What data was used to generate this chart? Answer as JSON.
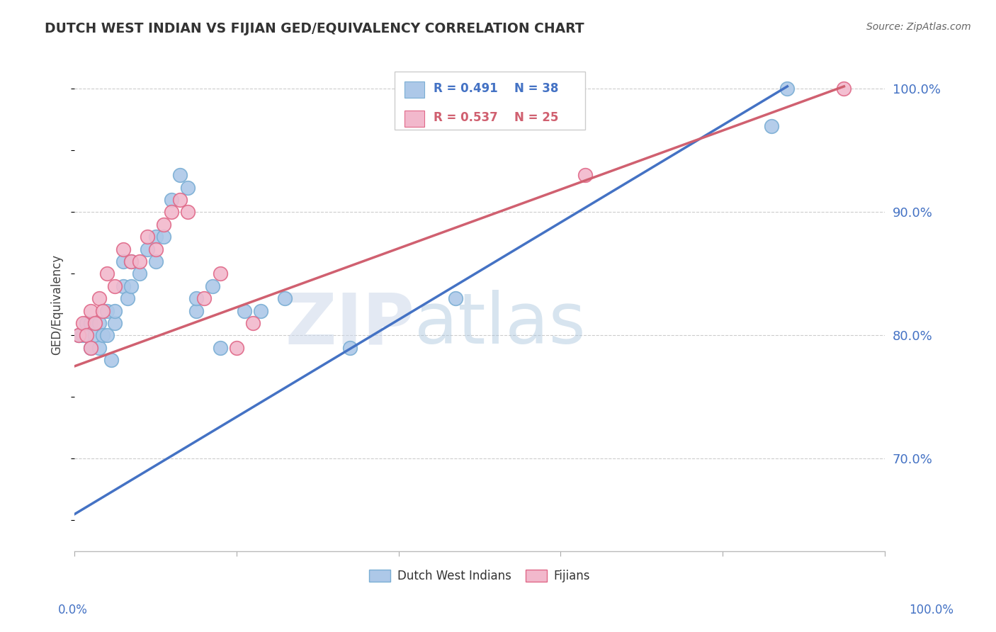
{
  "title": "DUTCH WEST INDIAN VS FIJIAN GED/EQUIVALENCY CORRELATION CHART",
  "source": "Source: ZipAtlas.com",
  "ylabel": "GED/Equivalency",
  "ylabel_right_ticks": [
    "70.0%",
    "80.0%",
    "90.0%",
    "100.0%"
  ],
  "ylabel_right_vals": [
    0.7,
    0.8,
    0.9,
    1.0
  ],
  "xlim": [
    0.0,
    1.0
  ],
  "ylim": [
    0.625,
    1.025
  ],
  "legend_blue_r": "R = 0.491",
  "legend_blue_n": "N = 38",
  "legend_pink_r": "R = 0.537",
  "legend_pink_n": "N = 25",
  "legend_label_blue": "Dutch West Indians",
  "legend_label_pink": "Fijians",
  "blue_color": "#adc8e8",
  "blue_edge": "#7aaed4",
  "pink_color": "#f2b8cc",
  "pink_edge": "#e06888",
  "blue_line_color": "#4472c4",
  "pink_line_color": "#d06070",
  "blue_x": [
    0.005,
    0.01,
    0.015,
    0.02,
    0.02,
    0.025,
    0.03,
    0.03,
    0.035,
    0.04,
    0.04,
    0.045,
    0.05,
    0.05,
    0.06,
    0.06,
    0.065,
    0.07,
    0.07,
    0.08,
    0.09,
    0.1,
    0.1,
    0.11,
    0.12,
    0.13,
    0.14,
    0.15,
    0.15,
    0.17,
    0.18,
    0.21,
    0.23,
    0.26,
    0.34,
    0.47,
    0.86,
    0.88
  ],
  "blue_y": [
    0.8,
    0.8,
    0.81,
    0.79,
    0.81,
    0.8,
    0.81,
    0.79,
    0.8,
    0.82,
    0.8,
    0.78,
    0.81,
    0.82,
    0.86,
    0.84,
    0.83,
    0.84,
    0.86,
    0.85,
    0.87,
    0.88,
    0.86,
    0.88,
    0.91,
    0.93,
    0.92,
    0.82,
    0.83,
    0.84,
    0.79,
    0.82,
    0.82,
    0.83,
    0.79,
    0.83,
    0.97,
    1.0
  ],
  "pink_x": [
    0.005,
    0.01,
    0.015,
    0.02,
    0.02,
    0.025,
    0.03,
    0.035,
    0.04,
    0.05,
    0.06,
    0.07,
    0.08,
    0.09,
    0.1,
    0.11,
    0.12,
    0.13,
    0.14,
    0.16,
    0.18,
    0.2,
    0.22,
    0.63,
    0.95
  ],
  "pink_y": [
    0.8,
    0.81,
    0.8,
    0.79,
    0.82,
    0.81,
    0.83,
    0.82,
    0.85,
    0.84,
    0.87,
    0.86,
    0.86,
    0.88,
    0.87,
    0.89,
    0.9,
    0.91,
    0.9,
    0.83,
    0.85,
    0.79,
    0.81,
    0.93,
    1.0
  ],
  "blue_line_x0": 0.0,
  "blue_line_y0": 0.655,
  "blue_line_x1": 0.88,
  "blue_line_y1": 1.002,
  "pink_line_x0": 0.0,
  "pink_line_y0": 0.775,
  "pink_line_x1": 0.95,
  "pink_line_y1": 1.002,
  "watermark_zip": "ZIP",
  "watermark_atlas": "atlas",
  "grid_color": "#cccccc",
  "background_color": "#ffffff",
  "title_color": "#333333",
  "axis_label_color": "#4472c4",
  "right_tick_color": "#4472c4"
}
